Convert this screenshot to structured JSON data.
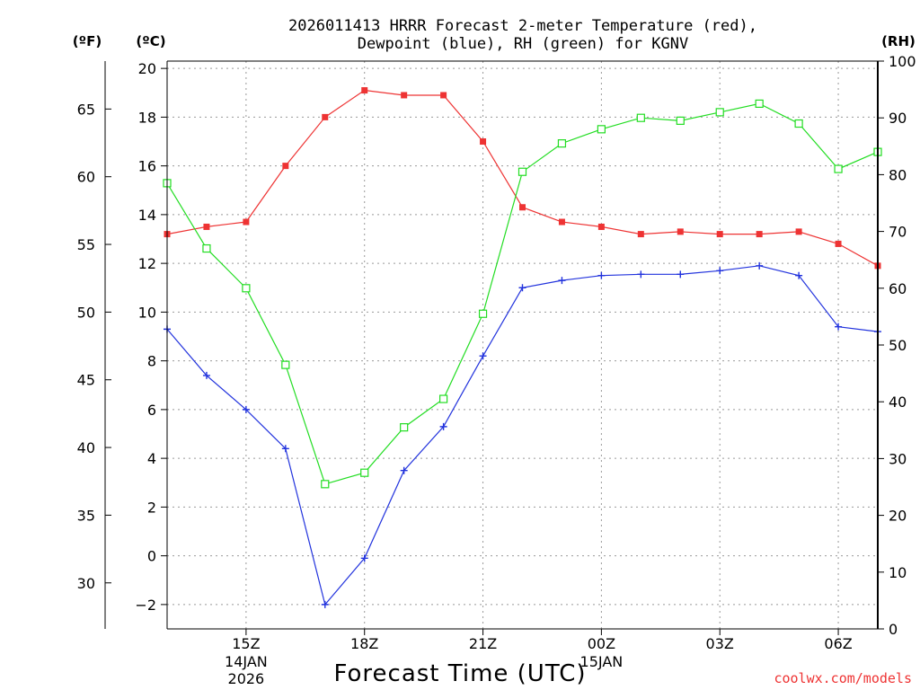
{
  "chart_data": {
    "type": "line",
    "title_line1": "2026011413 HRRR Forecast 2-meter Temperature (red),",
    "title_line2": "Dewpoint (blue), RH (green) for KGNV",
    "xlabel": "Forecast Time (UTC)",
    "credit": "coolwx.com/models",
    "units": {
      "far": "(ºF)",
      "cel": "(ºC)",
      "rh": "(RH)"
    },
    "colors": {
      "temp": "#ee3333",
      "dew": "#2233dd",
      "rh": "#22dd22",
      "credit": "#ee3333"
    },
    "hours": [
      13,
      14,
      15,
      16,
      17,
      18,
      19,
      20,
      21,
      22,
      23,
      24,
      25,
      26,
      27,
      28,
      29,
      30,
      31
    ],
    "x_range": [
      13,
      31
    ],
    "c_range": [
      -3,
      20.3
    ],
    "rh_range": [
      0,
      100
    ],
    "x_ticks": [
      {
        "hour": 15,
        "label": "15Z",
        "date1": "14JAN",
        "date2": "2026"
      },
      {
        "hour": 18,
        "label": "18Z",
        "date1": "",
        "date2": ""
      },
      {
        "hour": 21,
        "label": "21Z",
        "date1": "",
        "date2": ""
      },
      {
        "hour": 24,
        "label": "00Z",
        "date1": "15JAN",
        "date2": ""
      },
      {
        "hour": 27,
        "label": "03Z",
        "date1": "",
        "date2": ""
      },
      {
        "hour": 30,
        "label": "06Z",
        "date1": "",
        "date2": ""
      }
    ],
    "c_ticks": [
      -2,
      0,
      2,
      4,
      6,
      8,
      10,
      12,
      14,
      16,
      18,
      20
    ],
    "c_tick_labels": [
      "−2",
      "0",
      "2",
      "4",
      "6",
      "8",
      "10",
      "12",
      "14",
      "16",
      "18",
      "20"
    ],
    "f_ticks": [
      30,
      35,
      40,
      45,
      50,
      55,
      60,
      65
    ],
    "rh_ticks": [
      0,
      10,
      20,
      30,
      40,
      50,
      60,
      70,
      80,
      90,
      100
    ],
    "series": [
      {
        "name": "2-meter Temperature (°C)",
        "axis": "c",
        "marker": "filled-square",
        "values": [
          13.2,
          13.5,
          13.7,
          16.0,
          18.0,
          19.1,
          18.9,
          18.9,
          17.0,
          14.3,
          13.7,
          13.5,
          13.2,
          13.3,
          13.2,
          13.2,
          13.3,
          12.8,
          11.9
        ]
      },
      {
        "name": "Dewpoint (°C)",
        "axis": "c",
        "marker": "plus",
        "values": [
          9.3,
          7.4,
          6.0,
          4.4,
          -2.0,
          -0.1,
          3.5,
          5.3,
          8.2,
          11.0,
          11.3,
          11.5,
          11.55,
          11.55,
          11.7,
          11.9,
          11.5,
          9.4,
          9.2
        ]
      },
      {
        "name": "RH (%)",
        "axis": "rh",
        "marker": "open-square",
        "values": [
          78.5,
          67,
          60,
          46.5,
          25.5,
          27.5,
          35.5,
          40.5,
          55.5,
          80.5,
          85.5,
          88,
          90,
          89.5,
          91,
          92.5,
          89,
          81,
          84
        ]
      }
    ]
  }
}
